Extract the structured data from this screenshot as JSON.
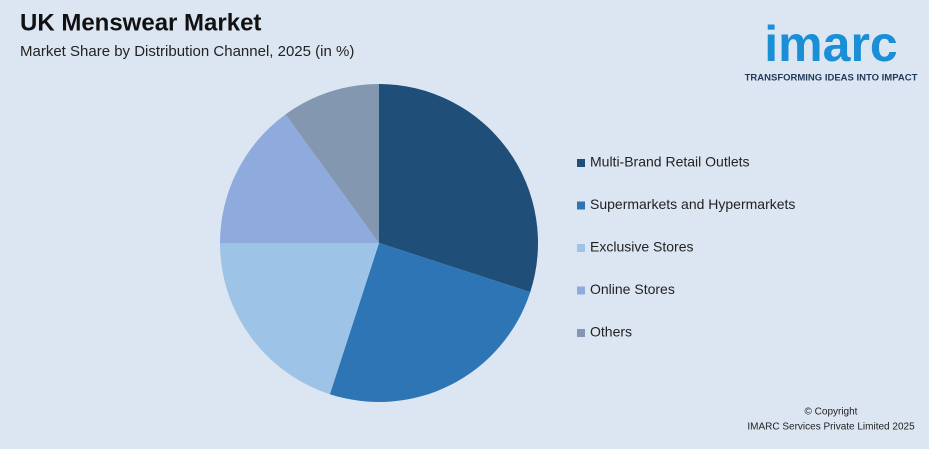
{
  "chart_data": {
    "type": "pie",
    "title": "UK Menswear Market",
    "subtitle": "Market Share by Distribution Channel, 2025 (in %)",
    "categories": [
      "Multi-Brand Retail Outlets",
      "Supermarkets and Hypermarkets",
      "Exclusive Stores",
      "Online Stores",
      "Others"
    ],
    "values": [
      30,
      25,
      20,
      15,
      10
    ],
    "colors": [
      "#1f4e79",
      "#2e75b6",
      "#9dc3e6",
      "#8faadc",
      "#8497b0"
    ]
  },
  "logo": {
    "name": "imarc",
    "tagline": "TRANSFORMING IDEAS INTO IMPACT"
  },
  "footer": {
    "copyright": "© Copyright",
    "company": "IMARC Services Private Limited 2025"
  }
}
